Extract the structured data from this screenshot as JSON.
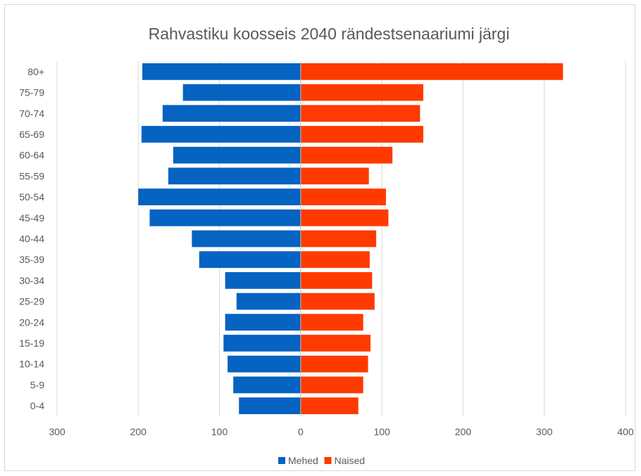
{
  "chart_data": {
    "type": "bar",
    "orientation": "horizontal",
    "stacked_diverging": true,
    "title": "Rahvastiku koosseis 2040 rändestsenaariumi järgi",
    "categories": [
      "80+",
      "75-79",
      "70-74",
      "65-69",
      "60-64",
      "55-59",
      "50-54",
      "45-49",
      "40-44",
      "35-39",
      "30-34",
      "25-29",
      "20-24",
      "15-19",
      "10-14",
      "5-9",
      "0-4"
    ],
    "series": [
      {
        "name": "Mehed",
        "color": "#0563c1",
        "side": "left",
        "values": [
          195,
          145,
          170,
          196,
          157,
          163,
          200,
          186,
          134,
          125,
          93,
          79,
          93,
          95,
          90,
          83,
          76
        ]
      },
      {
        "name": "Naised",
        "color": "#ff3a00",
        "side": "right",
        "values": [
          323,
          151,
          147,
          151,
          113,
          84,
          105,
          108,
          93,
          85,
          88,
          91,
          77,
          86,
          83,
          77,
          71
        ]
      }
    ],
    "xlim": [
      -300,
      400
    ],
    "xticks": [
      -300,
      -200,
      -100,
      0,
      100,
      200,
      300,
      400
    ],
    "xtick_labels": [
      "300",
      "200",
      "100",
      "0",
      "100",
      "200",
      "300",
      "400"
    ],
    "grid": "vertical",
    "legend_position": "bottom"
  }
}
